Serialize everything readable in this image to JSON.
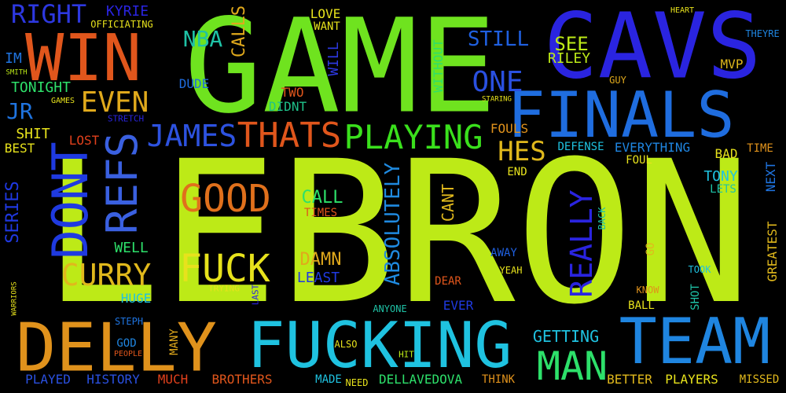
{
  "background": "#000000",
  "words": [
    {
      "text": "LEBRON",
      "color": "#bdea17"
    },
    {
      "text": "GAME",
      "color": "#6fe31f"
    },
    {
      "text": "CAVS",
      "color": "#2a24e0"
    },
    {
      "text": "FINALS",
      "color": "#1f6ddf"
    },
    {
      "text": "FUCKING",
      "color": "#1fc2e0"
    },
    {
      "text": "DELLY",
      "color": "#e0921c"
    },
    {
      "text": "TEAM",
      "color": "#1f85e0"
    },
    {
      "text": "WIN",
      "color": "#e0561c"
    },
    {
      "text": "DONT",
      "color": "#1f3ae0"
    },
    {
      "text": "REFS",
      "color": "#3a60e0"
    },
    {
      "text": "PLAYING",
      "color": "#3ae01c"
    },
    {
      "text": "THATS",
      "color": "#e0561c"
    },
    {
      "text": "JAMES",
      "color": "#2d52e0"
    },
    {
      "text": "GOOD",
      "color": "#e0701c"
    },
    {
      "text": "FUCK",
      "color": "#e7e21c"
    },
    {
      "text": "CURRY",
      "color": "#e0b81c"
    },
    {
      "text": "MAN",
      "color": "#2de06a"
    },
    {
      "text": "EVEN",
      "color": "#e0a91c"
    },
    {
      "text": "RIGHT",
      "color": "#2d38e0"
    },
    {
      "text": "ONE",
      "color": "#2a50e0"
    },
    {
      "text": "HES",
      "color": "#e0b81c"
    },
    {
      "text": "ABSOLUTELY",
      "color": "#1f8ae0"
    },
    {
      "text": "REALLY",
      "color": "#2a24e0"
    },
    {
      "text": "NBA",
      "color": "#1fc2a6"
    },
    {
      "text": "CALLS",
      "color": "#e0a91c"
    },
    {
      "text": "STILL",
      "color": "#1f60e0"
    },
    {
      "text": "SEE",
      "color": "#bdea17"
    },
    {
      "text": "RILEY",
      "color": "#bdea17"
    },
    {
      "text": "KYRIE",
      "color": "#2a24e0"
    },
    {
      "text": "OFFICIATING",
      "color": "#e7e21c"
    },
    {
      "text": "TONIGHT",
      "color": "#2ee06a"
    },
    {
      "text": "JR",
      "color": "#1f74e0"
    },
    {
      "text": "IM",
      "color": "#1f74e0"
    },
    {
      "text": "SHIT",
      "color": "#e7e21c"
    },
    {
      "text": "BEST",
      "color": "#e7e21c"
    },
    {
      "text": "LOST",
      "color": "#e0401c"
    },
    {
      "text": "SERIES",
      "color": "#1f38e0"
    },
    {
      "text": "WELL",
      "color": "#2de06a"
    },
    {
      "text": "HUGE",
      "color": "#1fc2e0"
    },
    {
      "text": "CALL",
      "color": "#2de06a"
    },
    {
      "text": "TIMES",
      "color": "#e0561c"
    },
    {
      "text": "DAMN",
      "color": "#e0a91c"
    },
    {
      "text": "LEAST",
      "color": "#1f3ae0"
    },
    {
      "text": "CANT",
      "color": "#e0b81c"
    },
    {
      "text": "TWO",
      "color": "#e0561c"
    },
    {
      "text": "DIDNT",
      "color": "#1fc28a"
    },
    {
      "text": "DUDE",
      "color": "#1f6ddf"
    },
    {
      "text": "LOVE",
      "color": "#e7e21c"
    },
    {
      "text": "WANT",
      "color": "#e7e21c"
    },
    {
      "text": "WILL",
      "color": "#2d38e0"
    },
    {
      "text": "WITHOUT",
      "color": "#2de06a"
    },
    {
      "text": "MVP",
      "color": "#e0b81c"
    },
    {
      "text": "GUY",
      "color": "#e0a91c"
    },
    {
      "text": "THEYRE",
      "color": "#1f85e0"
    },
    {
      "text": "FOULS",
      "color": "#e0921c"
    },
    {
      "text": "DEFENSE",
      "color": "#1fc2e0"
    },
    {
      "text": "EVERYTHING",
      "color": "#1f85e0"
    },
    {
      "text": "BAD",
      "color": "#e7e21c"
    },
    {
      "text": "TIME",
      "color": "#e0921c"
    },
    {
      "text": "FOUL",
      "color": "#e7e21c"
    },
    {
      "text": "TONY",
      "color": "#1fc2e0"
    },
    {
      "text": "LETS",
      "color": "#1fc2a6"
    },
    {
      "text": "NEXT",
      "color": "#1f74e0"
    },
    {
      "text": "END",
      "color": "#e7e21c"
    },
    {
      "text": "GREATEST",
      "color": "#e0b81c"
    },
    {
      "text": "GO",
      "color": "#e0b81c"
    },
    {
      "text": "BACK",
      "color": "#1fc2a6"
    },
    {
      "text": "AWAY",
      "color": "#1f60e0"
    },
    {
      "text": "DEAR",
      "color": "#e0561c"
    },
    {
      "text": "YEAH",
      "color": "#e7e21c"
    },
    {
      "text": "EVER",
      "color": "#1f3ae0"
    },
    {
      "text": "ANYONE",
      "color": "#1fc2a6"
    },
    {
      "text": "TOOK",
      "color": "#1fc2e0"
    },
    {
      "text": "SHOT",
      "color": "#1fc2a6"
    },
    {
      "text": "KNOW",
      "color": "#e0921c"
    },
    {
      "text": "BALL",
      "color": "#e7e21c"
    },
    {
      "text": "GETTING",
      "color": "#1fc2e0"
    },
    {
      "text": "BETTER",
      "color": "#e0b81c"
    },
    {
      "text": "PLAYERS",
      "color": "#e7e21c"
    },
    {
      "text": "MISSED",
      "color": "#e0b81c"
    },
    {
      "text": "DELLAVEDOVA",
      "color": "#2de06a"
    },
    {
      "text": "THINK",
      "color": "#e0921c"
    },
    {
      "text": "MADE",
      "color": "#1fc2e0"
    },
    {
      "text": "NEED",
      "color": "#e7e21c"
    },
    {
      "text": "BROTHERS",
      "color": "#e0561c"
    },
    {
      "text": "MUCH",
      "color": "#e0401c"
    },
    {
      "text": "HISTORY",
      "color": "#2a50e0"
    },
    {
      "text": "PLAYED",
      "color": "#2a50e0"
    },
    {
      "text": "STEPH",
      "color": "#1f74e0"
    },
    {
      "text": "GOD",
      "color": "#1f85e0"
    },
    {
      "text": "MANY",
      "color": "#e0a91c"
    },
    {
      "text": "ALSO",
      "color": "#e7e21c"
    },
    {
      "text": "HIT",
      "color": "#bdea17"
    },
    {
      "text": "PEOPLE",
      "color": "#e0561c"
    },
    {
      "text": "TRYING",
      "color": "#e7e21c"
    },
    {
      "text": "GAMES",
      "color": "#e7e21c"
    },
    {
      "text": "HEART",
      "color": "#e7e21c"
    },
    {
      "text": "SMITH",
      "color": "#bdea17"
    },
    {
      "text": "STARING",
      "color": "#e7e21c"
    },
    {
      "text": "STRETCH",
      "color": "#2a24e0"
    },
    {
      "text": "WARRIORS",
      "color": "#e7e21c"
    },
    {
      "text": "LAST",
      "color": "#2a24e0"
    }
  ]
}
